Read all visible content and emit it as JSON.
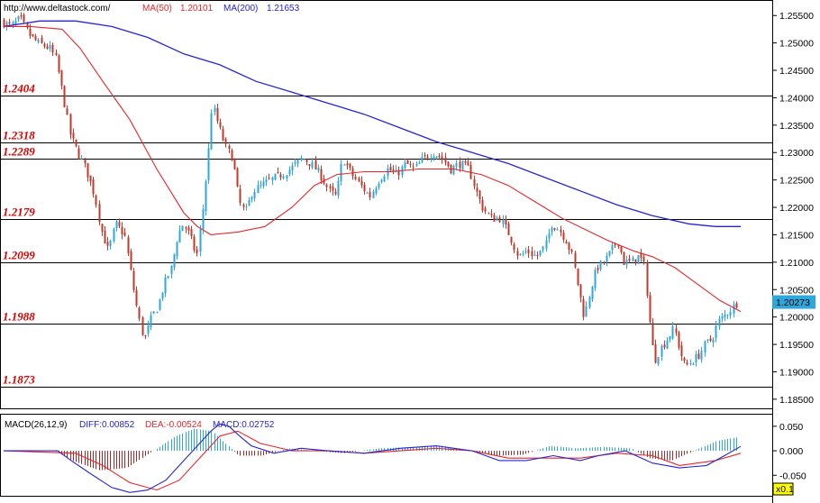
{
  "header": {
    "site": "http://www.deltastock.com/",
    "ma50_label": "MA(50)",
    "ma50_value": "1.20101",
    "ma200_label": "MA(200)",
    "ma200_value": "1.21653"
  },
  "colors": {
    "up": "#2ea8dc",
    "down": "#c0392b",
    "ma50": "#e8262a",
    "ma200": "#2525d6",
    "level_text": "#dd0000",
    "diff": "#2525d6",
    "dea": "#e8262a",
    "hist_pos": "#2ea8dc",
    "hist_neg": "#a52a2a"
  },
  "chart_data": [
    {
      "type": "candlestick",
      "title": "",
      "ylim": [
        1.1835,
        1.2575
      ],
      "y_ticks": [
        "1.25500",
        "1.25000",
        "1.24500",
        "1.24000",
        "1.23500",
        "1.23000",
        "1.22500",
        "1.22000",
        "1.21500",
        "1.21000",
        "1.20500",
        "1.20000",
        "1.19500",
        "1.19000",
        "1.18500"
      ],
      "levels": [
        {
          "label": "1.2404",
          "value": 1.2404
        },
        {
          "label": "1.2318",
          "value": 1.2318
        },
        {
          "label": "1.2289",
          "value": 1.2289
        },
        {
          "label": "1.2179",
          "value": 1.2179
        },
        {
          "label": "1.2099",
          "value": 1.2099
        },
        {
          "label": "1.1988",
          "value": 1.1988
        },
        {
          "label": "1.1873",
          "value": 1.1873
        }
      ],
      "last_price": "1.20273",
      "close_path": [
        [
          0,
          1.254
        ],
        [
          12,
          1.253
        ],
        [
          22,
          1.2545
        ],
        [
          32,
          1.2515
        ],
        [
          42,
          1.25
        ],
        [
          55,
          1.249
        ],
        [
          62,
          1.247
        ],
        [
          70,
          1.24
        ],
        [
          78,
          1.233
        ],
        [
          86,
          1.23
        ],
        [
          95,
          1.227
        ],
        [
          105,
          1.222
        ],
        [
          112,
          1.216
        ],
        [
          120,
          1.212
        ],
        [
          128,
          1.217
        ],
        [
          138,
          1.215
        ],
        [
          145,
          1.208
        ],
        [
          150,
          1.203
        ],
        [
          156,
          1.198
        ],
        [
          160,
          1.196
        ],
        [
          168,
          1.2
        ],
        [
          175,
          1.202
        ],
        [
          182,
          1.206
        ],
        [
          190,
          1.209
        ],
        [
          197,
          1.215
        ],
        [
          203,
          1.217
        ],
        [
          210,
          1.215
        ],
        [
          218,
          1.211
        ],
        [
          225,
          1.22
        ],
        [
          231,
          1.23
        ],
        [
          235,
          1.239
        ],
        [
          242,
          1.235
        ],
        [
          250,
          1.231
        ],
        [
          258,
          1.229
        ],
        [
          265,
          1.221
        ],
        [
          272,
          1.219
        ],
        [
          280,
          1.223
        ],
        [
          290,
          1.224
        ],
        [
          300,
          1.225
        ],
        [
          312,
          1.226
        ],
        [
          322,
          1.227
        ],
        [
          335,
          1.229
        ],
        [
          345,
          1.228
        ],
        [
          355,
          1.226
        ],
        [
          365,
          1.223
        ],
        [
          373,
          1.222
        ],
        [
          380,
          1.229
        ],
        [
          390,
          1.226
        ],
        [
          400,
          1.224
        ],
        [
          410,
          1.222
        ],
        [
          420,
          1.225
        ],
        [
          430,
          1.227
        ],
        [
          440,
          1.226
        ],
        [
          450,
          1.228
        ],
        [
          460,
          1.227
        ],
        [
          470,
          1.229
        ],
        [
          480,
          1.23
        ],
        [
          490,
          1.229
        ],
        [
          500,
          1.227
        ],
        [
          510,
          1.228
        ],
        [
          520,
          1.227
        ],
        [
          528,
          1.223
        ],
        [
          535,
          1.22
        ],
        [
          545,
          1.218
        ],
        [
          555,
          1.218
        ],
        [
          565,
          1.215
        ],
        [
          575,
          1.211
        ],
        [
          585,
          1.212
        ],
        [
          595,
          1.211
        ],
        [
          605,
          1.213
        ],
        [
          612,
          1.217
        ],
        [
          620,
          1.216
        ],
        [
          628,
          1.214
        ],
        [
          635,
          1.211
        ],
        [
          642,
          1.205
        ],
        [
          648,
          1.2
        ],
        [
          655,
          1.205
        ],
        [
          662,
          1.209
        ],
        [
          670,
          1.21
        ],
        [
          678,
          1.212
        ],
        [
          685,
          1.214
        ],
        [
          692,
          1.21
        ],
        [
          700,
          1.21
        ],
        [
          708,
          1.211
        ],
        [
          714,
          1.21
        ],
        [
          718,
          1.204
        ],
        [
          722,
          1.197
        ],
        [
          726,
          1.192
        ],
        [
          732,
          1.194
        ],
        [
          740,
          1.196
        ],
        [
          748,
          1.198
        ],
        [
          754,
          1.194
        ],
        [
          760,
          1.191
        ],
        [
          768,
          1.192
        ],
        [
          775,
          1.193
        ],
        [
          782,
          1.195
        ],
        [
          790,
          1.196
        ],
        [
          796,
          1.199
        ],
        [
          802,
          1.2
        ],
        [
          808,
          1.201
        ],
        [
          814,
          1.202
        ],
        [
          818,
          1.2027
        ]
      ],
      "ma50_path": [
        [
          0,
          1.253
        ],
        [
          30,
          1.253
        ],
        [
          65,
          1.2525
        ],
        [
          85,
          1.249
        ],
        [
          110,
          1.243
        ],
        [
          140,
          1.236
        ],
        [
          170,
          1.227
        ],
        [
          200,
          1.219
        ],
        [
          215,
          1.2165
        ],
        [
          230,
          1.215
        ],
        [
          260,
          1.2155
        ],
        [
          290,
          1.2165
        ],
        [
          320,
          1.22
        ],
        [
          345,
          1.224
        ],
        [
          370,
          1.226
        ],
        [
          400,
          1.2265
        ],
        [
          430,
          1.2265
        ],
        [
          460,
          1.227
        ],
        [
          500,
          1.227
        ],
        [
          530,
          1.226
        ],
        [
          560,
          1.224
        ],
        [
          590,
          1.221
        ],
        [
          620,
          1.218
        ],
        [
          645,
          1.216
        ],
        [
          670,
          1.214
        ],
        [
          700,
          1.212
        ],
        [
          720,
          1.211
        ],
        [
          745,
          1.209
        ],
        [
          770,
          1.206
        ],
        [
          795,
          1.203
        ],
        [
          818,
          1.201
        ]
      ],
      "ma200_path": [
        [
          0,
          1.253
        ],
        [
          40,
          1.254
        ],
        [
          80,
          1.254
        ],
        [
          120,
          1.253
        ],
        [
          160,
          1.251
        ],
        [
          200,
          1.248
        ],
        [
          240,
          1.246
        ],
        [
          280,
          1.243
        ],
        [
          320,
          1.241
        ],
        [
          360,
          1.239
        ],
        [
          400,
          1.237
        ],
        [
          440,
          1.2345
        ],
        [
          480,
          1.232
        ],
        [
          520,
          1.23
        ],
        [
          560,
          1.228
        ],
        [
          600,
          1.2255
        ],
        [
          640,
          1.223
        ],
        [
          680,
          1.2205
        ],
        [
          720,
          1.2185
        ],
        [
          760,
          1.217
        ],
        [
          790,
          1.2165
        ],
        [
          818,
          1.2165
        ]
      ]
    },
    {
      "type": "macd",
      "title": "MACD(26,12,9)",
      "diff_label": "DIFF:0.00852",
      "dea_label": "DEA:-0.00524",
      "macd_label": "MACD:0.02752",
      "ylim": [
        -0.09,
        0.07
      ],
      "y_ticks": [
        "0.050",
        "0.000",
        "-0.050"
      ],
      "scale_label": "x0.1",
      "diff_path": [
        [
          0,
          0.0
        ],
        [
          60,
          0.0
        ],
        [
          75,
          -0.02
        ],
        [
          95,
          -0.045
        ],
        [
          120,
          -0.075
        ],
        [
          140,
          -0.085
        ],
        [
          160,
          -0.08
        ],
        [
          180,
          -0.06
        ],
        [
          200,
          -0.02
        ],
        [
          215,
          0.01
        ],
        [
          230,
          0.04
        ],
        [
          240,
          0.055
        ],
        [
          250,
          0.05
        ],
        [
          262,
          0.03
        ],
        [
          275,
          0.01
        ],
        [
          300,
          -0.005
        ],
        [
          330,
          0.005
        ],
        [
          360,
          0.0
        ],
        [
          400,
          -0.005
        ],
        [
          440,
          0.005
        ],
        [
          480,
          0.01
        ],
        [
          520,
          0.0
        ],
        [
          550,
          -0.02
        ],
        [
          580,
          -0.02
        ],
        [
          610,
          -0.01
        ],
        [
          640,
          -0.02
        ],
        [
          660,
          -0.01
        ],
        [
          690,
          0.0
        ],
        [
          720,
          -0.025
        ],
        [
          750,
          -0.035
        ],
        [
          780,
          -0.03
        ],
        [
          800,
          -0.01
        ],
        [
          818,
          0.009
        ]
      ],
      "dea_path": [
        [
          0,
          0.0
        ],
        [
          80,
          -0.005
        ],
        [
          110,
          -0.03
        ],
        [
          140,
          -0.065
        ],
        [
          170,
          -0.08
        ],
        [
          195,
          -0.06
        ],
        [
          220,
          -0.01
        ],
        [
          240,
          0.03
        ],
        [
          260,
          0.04
        ],
        [
          285,
          0.015
        ],
        [
          320,
          0.0
        ],
        [
          360,
          0.0
        ],
        [
          400,
          -0.005
        ],
        [
          440,
          0.0
        ],
        [
          480,
          0.005
        ],
        [
          520,
          0.0
        ],
        [
          560,
          -0.015
        ],
        [
          600,
          -0.015
        ],
        [
          640,
          -0.015
        ],
        [
          680,
          -0.005
        ],
        [
          720,
          -0.01
        ],
        [
          750,
          -0.03
        ],
        [
          790,
          -0.02
        ],
        [
          818,
          -0.005
        ]
      ],
      "hist_path": [
        [
          0,
          0.0
        ],
        [
          60,
          0.0
        ],
        [
          80,
          -0.02
        ],
        [
          110,
          -0.04
        ],
        [
          140,
          -0.035
        ],
        [
          170,
          0.0
        ],
        [
          195,
          0.03
        ],
        [
          215,
          0.045
        ],
        [
          235,
          0.04
        ],
        [
          250,
          0.015
        ],
        [
          265,
          -0.01
        ],
        [
          290,
          -0.01
        ],
        [
          320,
          0.005
        ],
        [
          350,
          0.0
        ],
        [
          380,
          -0.005
        ],
        [
          420,
          0.005
        ],
        [
          460,
          0.008
        ],
        [
          490,
          0.01
        ],
        [
          520,
          0.002
        ],
        [
          550,
          -0.01
        ],
        [
          580,
          -0.008
        ],
        [
          610,
          0.01
        ],
        [
          640,
          0.005
        ],
        [
          670,
          0.008
        ],
        [
          700,
          0.005
        ],
        [
          720,
          -0.015
        ],
        [
          745,
          -0.02
        ],
        [
          770,
          0.0
        ],
        [
          795,
          0.02
        ],
        [
          818,
          0.028
        ]
      ]
    }
  ]
}
